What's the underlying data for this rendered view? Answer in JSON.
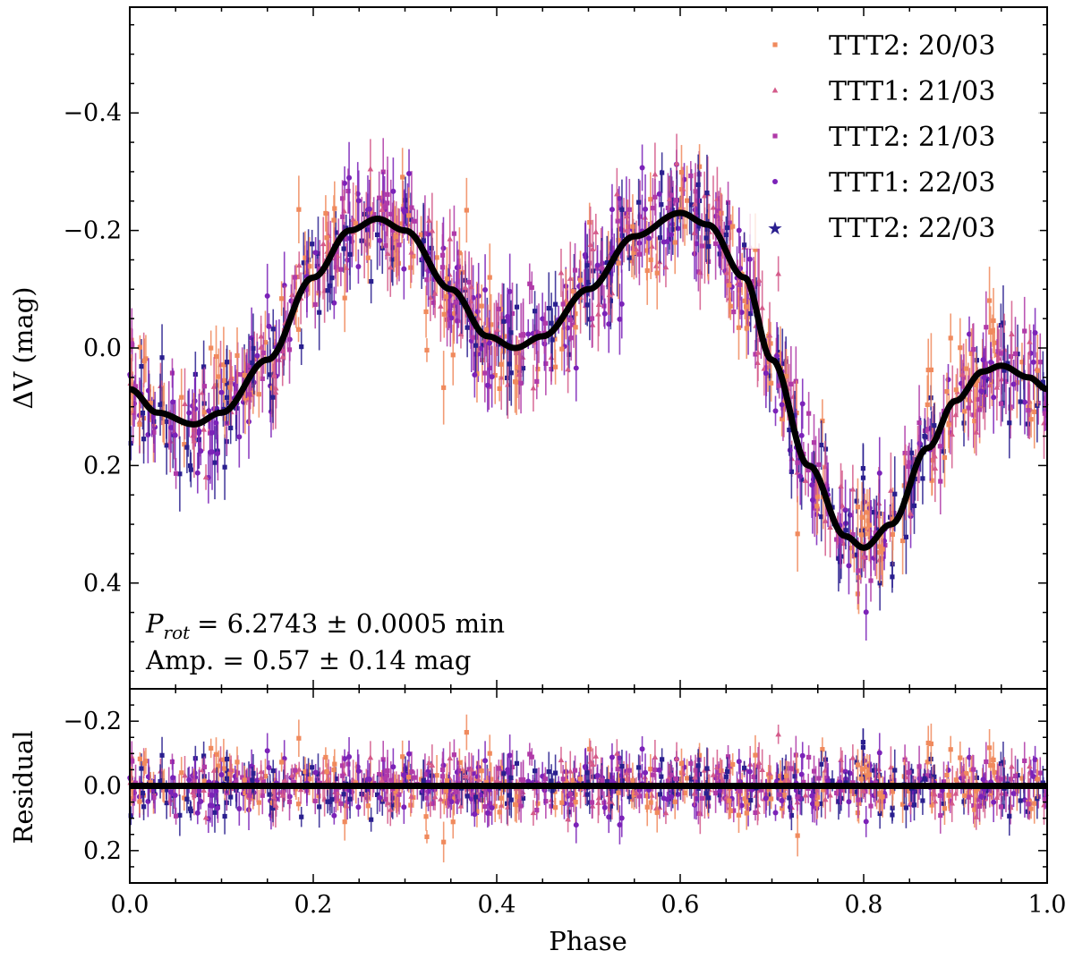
{
  "chart_data": [
    {
      "type": "scatter",
      "panel": "light-curve",
      "ylabel": "ΔV (mag)",
      "xlim": [
        0.0,
        1.0
      ],
      "ylim": [
        0.58,
        -0.58
      ],
      "y_inverted": true,
      "yticks": [
        -0.4,
        -0.2,
        0.0,
        0.2,
        0.4
      ],
      "ytick_labels": [
        "−0.4",
        "−0.2",
        "0.0",
        "0.2",
        "0.4"
      ],
      "grid": false,
      "legend_position": "top-right",
      "series": [
        {
          "name": "TTT2: 20/03",
          "marker": "square",
          "color": "#f08a5d"
        },
        {
          "name": "TTT1: 21/03",
          "marker": "triangle",
          "color": "#d45a8a"
        },
        {
          "name": "TTT2: 21/03",
          "marker": "square",
          "color": "#b03aa8"
        },
        {
          "name": "TTT1: 22/03",
          "marker": "circle",
          "color": "#7b22b8"
        },
        {
          "name": "TTT2: 22/03",
          "marker": "star",
          "color": "#2a1f8f"
        }
      ],
      "model_curve": {
        "color": "#000000",
        "points": [
          [
            0.0,
            0.07
          ],
          [
            0.03,
            0.11
          ],
          [
            0.07,
            0.13
          ],
          [
            0.1,
            0.11
          ],
          [
            0.15,
            0.02
          ],
          [
            0.2,
            -0.12
          ],
          [
            0.24,
            -0.2
          ],
          [
            0.27,
            -0.22
          ],
          [
            0.3,
            -0.2
          ],
          [
            0.35,
            -0.1
          ],
          [
            0.39,
            -0.02
          ],
          [
            0.42,
            0.0
          ],
          [
            0.45,
            -0.02
          ],
          [
            0.5,
            -0.1
          ],
          [
            0.55,
            -0.19
          ],
          [
            0.6,
            -0.23
          ],
          [
            0.63,
            -0.21
          ],
          [
            0.67,
            -0.12
          ],
          [
            0.7,
            0.02
          ],
          [
            0.74,
            0.2
          ],
          [
            0.78,
            0.32
          ],
          [
            0.8,
            0.34
          ],
          [
            0.83,
            0.3
          ],
          [
            0.87,
            0.17
          ],
          [
            0.9,
            0.09
          ],
          [
            0.93,
            0.04
          ],
          [
            0.95,
            0.03
          ],
          [
            0.98,
            0.05
          ],
          [
            1.0,
            0.07
          ]
        ]
      },
      "annotations": [
        "= 6.2743 ± 0.0005 min",
        "Amp. = 0.57 ± 0.14 mag"
      ],
      "annotation_symbol": {
        "base": "P",
        "subscript": "rot"
      }
    },
    {
      "type": "scatter",
      "panel": "residuals",
      "xlabel": "Phase",
      "ylabel": "Residual",
      "xlim": [
        0.0,
        1.0
      ],
      "ylim": [
        0.3,
        -0.3
      ],
      "y_inverted": true,
      "xticks": [
        0.0,
        0.2,
        0.4,
        0.6,
        0.8,
        1.0
      ],
      "xtick_labels": [
        "0.0",
        "0.2",
        "0.4",
        "0.6",
        "0.8",
        "1.0"
      ],
      "yticks": [
        -0.2,
        0.0,
        0.2
      ],
      "ytick_labels": [
        "−0.2",
        "0.0",
        "0.2"
      ],
      "zero_line": 0.0,
      "scatter_note": "about 1000 points per panel spread over all five series; residual scatter sigma about 0.05 mag with error bars about 0.03 to 0.06 mag"
    }
  ]
}
